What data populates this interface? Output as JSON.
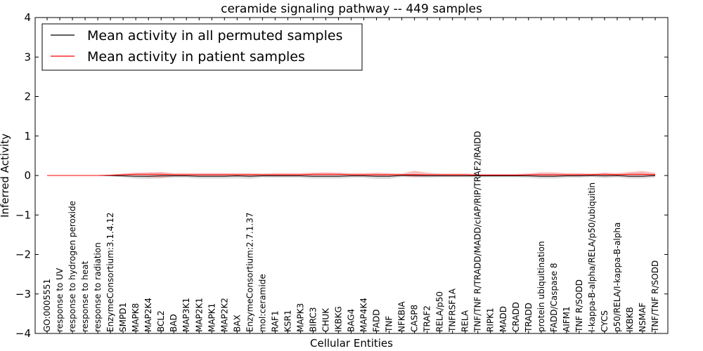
{
  "chart_data": {
    "type": "line",
    "title": "ceramide signaling pathway -- 449 samples",
    "xlabel": "Cellular Entities",
    "ylabel": "Inferred Activity",
    "ylim": [
      -4,
      4
    ],
    "yticks": [
      -4,
      -3,
      -2,
      -1,
      0,
      1,
      2,
      3,
      4
    ],
    "ytick_labels": [
      "−4",
      "−3",
      "−2",
      "−1",
      "0",
      "1",
      "2",
      "3",
      "4"
    ],
    "grid": false,
    "legend_position": "top-left",
    "categories": [
      "GO:0005551",
      "response to UV",
      "response to hydrogen peroxide",
      "response to heat",
      "response to radiation",
      "EnzymeConsortium:3.1.4.12",
      "SMPD1",
      "MAPK8",
      "MAP2K4",
      "BCL2",
      "BAD",
      "MAP3K1",
      "MAP2K1",
      "MAPK1",
      "MAP2K2",
      "BAX",
      "EnzymeConsortium:2.7.1.37",
      "mol:ceramide",
      "RAF1",
      "KSR1",
      "MAPK3",
      "BIRC3",
      "CHUK",
      "IKBKG",
      "BAG4",
      "MAP4K4",
      "FADD",
      "TNF",
      "NFKBIA",
      "CASP8",
      "TRAF2",
      "RELA/p50",
      "TNFRSF1A",
      "RELA",
      "TNF/TNF R/TRADD/MADD/cIAP/RIP/TRAF2/RAIDD",
      "RIPK1",
      "MADD",
      "CRADD",
      "TRADD",
      "protein ubiquitination",
      "FADD/Caspase 8",
      "AIFM1",
      "TNF R/SODD",
      "I-kappa-B-alpha/RELA/p50/ubiquitin",
      "CYCS",
      "p50/RELA/I-kappa-B-alpha",
      "IKBKB",
      "NSMAF",
      "TNF/TNF R/SODD"
    ],
    "series": [
      {
        "name": "Mean activity in all permuted samples",
        "color": "#000000",
        "band_color": "#bbbbbb",
        "values": [
          0,
          0,
          0,
          0,
          0,
          0,
          -0.01,
          -0.02,
          -0.02,
          -0.01,
          -0.01,
          -0.01,
          -0.02,
          -0.02,
          -0.02,
          -0.01,
          -0.02,
          -0.01,
          -0.01,
          -0.01,
          -0.01,
          -0.02,
          -0.02,
          -0.02,
          -0.01,
          -0.01,
          -0.02,
          -0.02,
          0,
          0,
          -0.01,
          -0.01,
          -0.01,
          -0.01,
          -0.01,
          -0.01,
          -0.01,
          -0.01,
          -0.01,
          -0.02,
          -0.02,
          -0.01,
          -0.01,
          0,
          -0.01,
          0,
          -0.02,
          -0.02,
          0
        ],
        "band_low": [
          0,
          0,
          0,
          0,
          0,
          -0.02,
          -0.05,
          -0.08,
          -0.09,
          -0.07,
          -0.06,
          -0.06,
          -0.08,
          -0.08,
          -0.08,
          -0.07,
          -0.09,
          -0.05,
          -0.06,
          -0.06,
          -0.06,
          -0.08,
          -0.08,
          -0.08,
          -0.06,
          -0.06,
          -0.09,
          -0.09,
          -0.04,
          -0.05,
          -0.06,
          -0.05,
          -0.05,
          -0.05,
          -0.05,
          -0.05,
          -0.05,
          -0.05,
          -0.06,
          -0.08,
          -0.08,
          -0.06,
          -0.06,
          -0.04,
          -0.07,
          -0.05,
          -0.08,
          -0.08,
          -0.05
        ],
        "band_high": [
          0,
          0,
          0,
          0,
          0,
          0.01,
          0.03,
          0.04,
          0.04,
          0.05,
          0.03,
          0.03,
          0.03,
          0.03,
          0.03,
          0.03,
          0.03,
          0.03,
          0.03,
          0.03,
          0.03,
          0.04,
          0.04,
          0.04,
          0.03,
          0.03,
          0.04,
          0.04,
          0.03,
          0.03,
          0.03,
          0.03,
          0.03,
          0.03,
          0.03,
          0.03,
          0.03,
          0.03,
          0.03,
          0.04,
          0.04,
          0.03,
          0.03,
          0.03,
          0.04,
          0.03,
          0.04,
          0.04,
          0.04
        ]
      },
      {
        "name": "Mean activity in patient samples",
        "color": "#ff0000",
        "band_color": "#f08080",
        "values": [
          0,
          0,
          0,
          0,
          0,
          0.01,
          0.02,
          0.03,
          0.03,
          0.03,
          0.02,
          0.02,
          0.02,
          0.02,
          0.02,
          0.02,
          0.02,
          0.02,
          0.02,
          0.02,
          0.02,
          0.03,
          0.03,
          0.03,
          0.02,
          0.02,
          0.02,
          0.02,
          0.02,
          0.02,
          0.02,
          0.02,
          0.02,
          0.02,
          0.01,
          0.01,
          0.01,
          0.01,
          0.02,
          0.02,
          0.02,
          0.02,
          0.02,
          0.02,
          0.03,
          0.02,
          0.03,
          0.03,
          0.02
        ],
        "band_low": [
          0,
          0,
          0,
          0,
          0,
          -0.01,
          -0.02,
          -0.02,
          -0.04,
          -0.06,
          -0.02,
          -0.02,
          -0.02,
          -0.02,
          -0.02,
          -0.02,
          -0.02,
          -0.02,
          -0.02,
          -0.02,
          -0.02,
          -0.02,
          -0.02,
          -0.02,
          -0.02,
          -0.02,
          -0.02,
          -0.02,
          -0.01,
          -0.04,
          -0.02,
          -0.02,
          -0.02,
          -0.02,
          -0.01,
          -0.01,
          -0.01,
          -0.01,
          -0.02,
          -0.03,
          -0.03,
          -0.02,
          -0.02,
          -0.01,
          -0.02,
          -0.02,
          -0.03,
          -0.03,
          -0.02
        ],
        "band_high": [
          0,
          0,
          0,
          0,
          0,
          0.02,
          0.05,
          0.07,
          0.08,
          0.09,
          0.06,
          0.06,
          0.06,
          0.06,
          0.06,
          0.06,
          0.06,
          0.05,
          0.06,
          0.06,
          0.06,
          0.07,
          0.08,
          0.07,
          0.06,
          0.06,
          0.07,
          0.06,
          0.05,
          0.12,
          0.07,
          0.05,
          0.05,
          0.05,
          0.04,
          0.04,
          0.04,
          0.04,
          0.05,
          0.08,
          0.08,
          0.06,
          0.06,
          0.05,
          0.07,
          0.06,
          0.09,
          0.11,
          0.07
        ]
      }
    ]
  }
}
